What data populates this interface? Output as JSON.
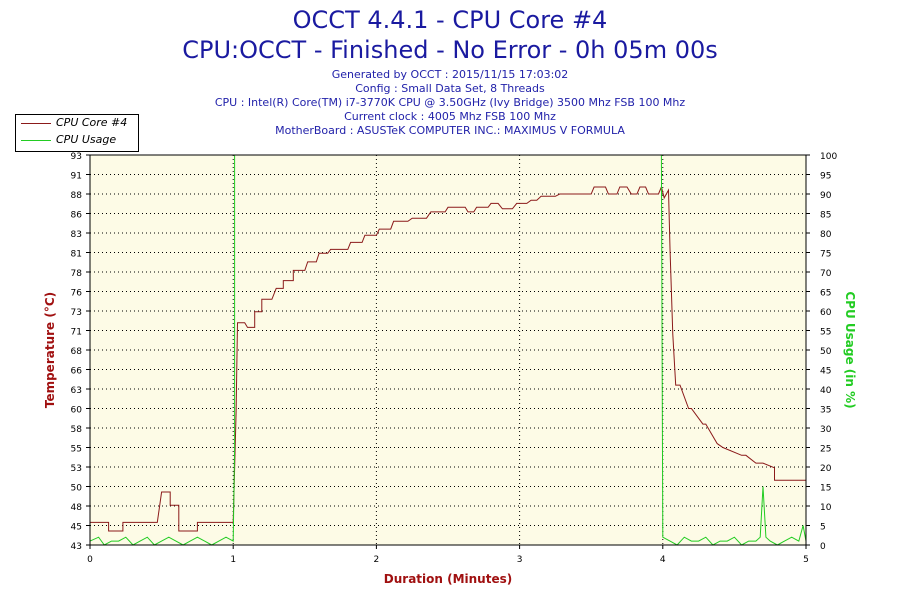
{
  "header": {
    "title": "OCCT 4.4.1 - CPU Core #4",
    "subtitle": "CPU:OCCT - Finished - No Error - 0h 05m 00s",
    "info": [
      "Generated by OCCT : 2015/11/15 17:03:02",
      "Config : Small Data Set, 8 Threads",
      "CPU : Intel(R) Core(TM) i7-3770K CPU @ 3.50GHz (Ivy Bridge) 3500 Mhz FSB 100 Mhz",
      "Current clock : 4005 Mhz FSB 100 Mhz",
      "MotherBoard : ASUSTeK COMPUTER INC.: MAXIMUS V FORMULA"
    ]
  },
  "legend": [
    {
      "label": "CPU Core #4",
      "color": "#8b1a1a"
    },
    {
      "label": "CPU Usage",
      "color": "#22cc22"
    }
  ],
  "colors": {
    "background": "#fdfbe6",
    "grid": "#000000",
    "temperature": "#8b1a1a",
    "usage": "#22cc22",
    "title": "#1a1aa0",
    "axis_label": "#a01010"
  },
  "chart_data": {
    "type": "line",
    "xlabel": "Duration (Minutes)",
    "ylabel": "Temperature (°C)",
    "y2label": "CPU Usage (in %)",
    "xlim": [
      0,
      5
    ],
    "ylim": [
      43,
      93
    ],
    "y2lim": [
      0,
      100
    ],
    "x_ticks": [
      "0",
      "1",
      "2",
      "3",
      "4",
      "5"
    ],
    "y_ticks": [
      "43",
      "45",
      "48",
      "50",
      "53",
      "55",
      "58",
      "60",
      "63",
      "66",
      "68",
      "71",
      "73",
      "76",
      "78",
      "81",
      "83",
      "86",
      "88",
      "91",
      "93"
    ],
    "y2_ticks": [
      "0",
      "5",
      "10",
      "15",
      "20",
      "25",
      "30",
      "35",
      "40",
      "45",
      "50",
      "55",
      "60",
      "65",
      "70",
      "75",
      "80",
      "85",
      "90",
      "95",
      "100"
    ],
    "grid": true,
    "legend_position": "top-left",
    "series": [
      {
        "name": "CPU Core #4",
        "axis": "left",
        "x": [
          0,
          0.13,
          0.13,
          0.23,
          0.23,
          0.47,
          0.5,
          0.56,
          0.56,
          0.62,
          0.62,
          0.75,
          0.75,
          1.0,
          1.0,
          1.02,
          1.03,
          1.08,
          1.1,
          1.15,
          1.15,
          1.2,
          1.2,
          1.27,
          1.3,
          1.35,
          1.35,
          1.42,
          1.42,
          1.5,
          1.52,
          1.58,
          1.6,
          1.66,
          1.68,
          1.8,
          1.82,
          1.9,
          1.92,
          2.0,
          2.02,
          2.1,
          2.12,
          2.22,
          2.25,
          2.35,
          2.38,
          2.48,
          2.5,
          2.62,
          2.64,
          2.68,
          2.7,
          2.78,
          2.8,
          2.85,
          2.88,
          2.95,
          2.98,
          3.05,
          3.08,
          3.12,
          3.15,
          3.25,
          3.28,
          3.5,
          3.52,
          3.6,
          3.62,
          3.68,
          3.7,
          3.75,
          3.78,
          3.82,
          3.84,
          3.88,
          3.9,
          3.97,
          3.99,
          4.01,
          4.04,
          4.05,
          4.07,
          4.09,
          4.12,
          4.18,
          4.2,
          4.28,
          4.3,
          4.38,
          4.42,
          4.55,
          4.58,
          4.65,
          4.7,
          4.78,
          4.78,
          5.0
        ],
        "values": [
          45.9,
          45.9,
          44.8,
          44.8,
          45.9,
          45.9,
          49.8,
          49.8,
          48.1,
          48.1,
          44.8,
          44.8,
          45.9,
          45.9,
          45.9,
          60,
          71.5,
          71.5,
          70.9,
          70.9,
          72.9,
          72.9,
          74.5,
          74.5,
          75.9,
          75.9,
          76.9,
          76.9,
          78.2,
          78.2,
          79.3,
          79.3,
          80.4,
          80.4,
          80.9,
          80.9,
          81.8,
          81.8,
          82.7,
          82.7,
          83.5,
          83.5,
          84.5,
          84.5,
          84.9,
          84.9,
          85.7,
          85.7,
          86.3,
          86.3,
          85.7,
          85.7,
          86.3,
          86.3,
          86.8,
          86.8,
          86.1,
          86.1,
          86.8,
          86.8,
          87.2,
          87.2,
          87.7,
          87.7,
          88,
          88,
          88.9,
          88.9,
          88,
          88,
          88.9,
          88.9,
          88,
          88,
          88.9,
          88.9,
          88,
          88,
          88.9,
          87.5,
          88.5,
          81,
          70,
          63.5,
          63.5,
          60.5,
          60.5,
          58.5,
          58.5,
          56,
          55.5,
          54.5,
          54.5,
          53.5,
          53.5,
          52.9,
          51.3,
          51.3
        ]
      },
      {
        "name": "CPU Usage",
        "axis": "right",
        "x": [
          0,
          0.06,
          0.1,
          0.15,
          0.2,
          0.25,
          0.3,
          0.35,
          0.4,
          0.45,
          0.5,
          0.55,
          0.6,
          0.65,
          0.7,
          0.75,
          0.8,
          0.85,
          0.9,
          0.95,
          1.0,
          1.01,
          1.01,
          1.99,
          3.99,
          3.995,
          4.0,
          4.05,
          4.1,
          4.15,
          4.2,
          4.25,
          4.3,
          4.35,
          4.4,
          4.45,
          4.5,
          4.55,
          4.6,
          4.65,
          4.68,
          4.7,
          4.72,
          4.75,
          4.8,
          4.85,
          4.9,
          4.95,
          4.98,
          5.0
        ],
        "values": [
          1,
          2,
          0,
          1,
          1,
          2,
          0,
          1,
          2,
          0,
          1,
          2,
          1,
          0,
          1,
          2,
          1,
          0,
          1,
          2,
          1,
          25,
          100,
          100,
          100,
          50,
          2,
          1,
          0,
          2,
          1,
          1,
          2,
          0,
          1,
          1,
          2,
          0,
          1,
          1,
          2,
          15,
          2,
          1,
          0,
          1,
          2,
          1,
          5,
          1
        ]
      }
    ]
  }
}
